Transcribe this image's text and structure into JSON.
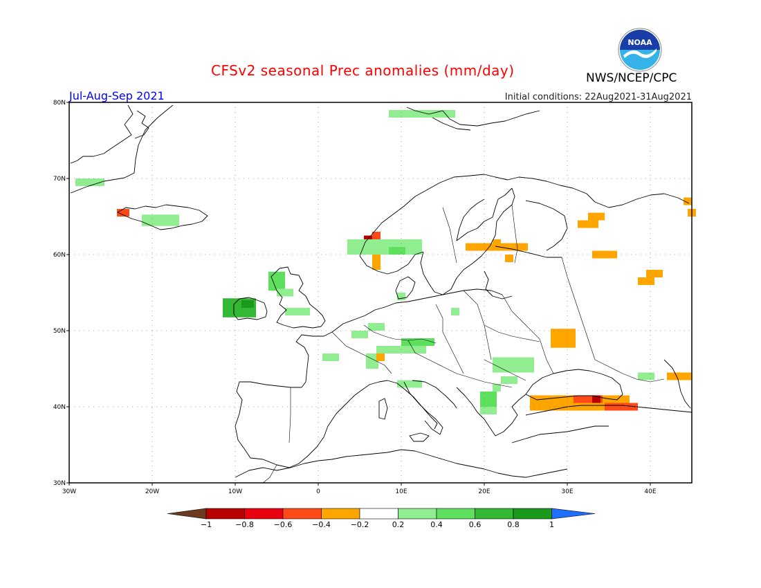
{
  "header": {
    "title": "CFSv2 seasonal Prec anomalies (mm/day)",
    "agency": "NWS/NCEP/CPC",
    "logo_text": "NOAA",
    "period": "Jul-Aug-Sep 2021",
    "initial_conditions": "Initial conditions: 22Aug2021-31Aug2021"
  },
  "axes": {
    "lon_ticks": [
      "30W",
      "20W",
      "10W",
      "0",
      "10E",
      "20E",
      "30E",
      "40E"
    ],
    "lat_ticks": [
      "30N",
      "40N",
      "50N",
      "60N",
      "70N",
      "80N"
    ]
  },
  "colorbar": {
    "tick_labels": [
      "-1",
      "-0.8",
      "-0.6",
      "-0.4",
      "-0.2",
      "0.2",
      "0.4",
      "0.6",
      "0.8",
      "1"
    ],
    "colors": [
      "#6b3a1f",
      "#b80000",
      "#e8000e",
      "#ff4a17",
      "#ffa500",
      "#ffffff",
      "#90ee90",
      "#5ee05e",
      "#32b832",
      "#1a9a1a",
      "#1e6eff"
    ]
  },
  "anomaly_cells": [
    {
      "lon": -27.5,
      "lat": 69.5,
      "w": 3.5,
      "h": 1.0,
      "level": 0.3
    },
    {
      "lon": -19.0,
      "lat": 64.5,
      "w": 4.5,
      "h": 1.5,
      "level": 0.3
    },
    {
      "lon": -23.5,
      "lat": 65.5,
      "w": 1.5,
      "h": 1.0,
      "level": -0.5
    },
    {
      "lon": 12.5,
      "lat": 78.5,
      "w": 8.0,
      "h": 1.0,
      "level": 0.3
    },
    {
      "lon": -9.5,
      "lat": 53.0,
      "w": 4.0,
      "h": 2.5,
      "level": 0.7
    },
    {
      "lon": -8.5,
      "lat": 53.5,
      "w": 1.5,
      "h": 1.0,
      "level": 0.9
    },
    {
      "lon": -5.0,
      "lat": 56.5,
      "w": 2.0,
      "h": 2.5,
      "level": 0.5
    },
    {
      "lon": -4.0,
      "lat": 55.0,
      "w": 2.0,
      "h": 1.0,
      "level": 0.3
    },
    {
      "lon": -2.5,
      "lat": 52.5,
      "w": 3.0,
      "h": 1.0,
      "level": 0.3
    },
    {
      "lon": 6.0,
      "lat": 61.5,
      "w": 1.0,
      "h": 2.0,
      "level": -0.9
    },
    {
      "lon": 7.0,
      "lat": 62.5,
      "w": 1.0,
      "h": 1.0,
      "level": -0.6
    },
    {
      "lon": 7.0,
      "lat": 59.5,
      "w": 1.0,
      "h": 1.5,
      "level": -0.4
    },
    {
      "lon": 8.0,
      "lat": 61.0,
      "w": 9.0,
      "h": 2.0,
      "level": 0.3
    },
    {
      "lon": 9.5,
      "lat": 60.5,
      "w": 2.0,
      "h": 1.0,
      "level": 0.5
    },
    {
      "lon": 10.0,
      "lat": 54.5,
      "w": 1.0,
      "h": 1.0,
      "level": 0.3
    },
    {
      "lon": 16.5,
      "lat": 52.5,
      "w": 1.0,
      "h": 1.0,
      "level": 0.3
    },
    {
      "lon": 7.0,
      "lat": 50.5,
      "w": 2.0,
      "h": 1.0,
      "level": 0.3
    },
    {
      "lon": 5.0,
      "lat": 49.5,
      "w": 2.0,
      "h": 1.0,
      "level": 0.3
    },
    {
      "lon": 1.5,
      "lat": 46.5,
      "w": 2.0,
      "h": 1.0,
      "level": 0.3
    },
    {
      "lon": 6.5,
      "lat": 46.0,
      "w": 1.5,
      "h": 2.0,
      "level": 0.3
    },
    {
      "lon": 7.5,
      "lat": 46.5,
      "w": 1.0,
      "h": 1.0,
      "level": -0.4
    },
    {
      "lon": 10.0,
      "lat": 47.5,
      "w": 6.0,
      "h": 1.0,
      "level": 0.3
    },
    {
      "lon": 12.0,
      "lat": 48.5,
      "w": 4.0,
      "h": 1.0,
      "level": 0.5
    },
    {
      "lon": 11.0,
      "lat": 43.0,
      "w": 3.0,
      "h": 1.0,
      "level": 0.3
    },
    {
      "lon": 23.5,
      "lat": 45.5,
      "w": 5.0,
      "h": 2.0,
      "level": 0.3
    },
    {
      "lon": 23.0,
      "lat": 43.5,
      "w": 2.0,
      "h": 1.0,
      "level": 0.3
    },
    {
      "lon": 21.5,
      "lat": 42.5,
      "w": 1.0,
      "h": 1.0,
      "level": 0.3
    },
    {
      "lon": 20.5,
      "lat": 41.0,
      "w": 2.0,
      "h": 2.0,
      "level": 0.5
    },
    {
      "lon": 20.5,
      "lat": 39.5,
      "w": 2.0,
      "h": 1.0,
      "level": 0.3
    },
    {
      "lon": 7.0,
      "lat": 58.5,
      "w": 1.0,
      "h": 1.0,
      "level": -0.4
    },
    {
      "lon": 21.5,
      "lat": 61.0,
      "w": 7.5,
      "h": 1.0,
      "level": -0.4
    },
    {
      "lon": 21.5,
      "lat": 61.5,
      "w": 1.0,
      "h": 1.0,
      "level": -0.4
    },
    {
      "lon": 23.0,
      "lat": 59.5,
      "w": 1.0,
      "h": 1.0,
      "level": -0.4
    },
    {
      "lon": 32.5,
      "lat": 64.0,
      "w": 2.5,
      "h": 1.0,
      "level": -0.4
    },
    {
      "lon": 33.5,
      "lat": 65.0,
      "w": 2.0,
      "h": 1.0,
      "level": -0.4
    },
    {
      "lon": 34.5,
      "lat": 60.0,
      "w": 3.0,
      "h": 1.0,
      "level": -0.4
    },
    {
      "lon": 44.5,
      "lat": 67.0,
      "w": 1.0,
      "h": 1.0,
      "level": -0.4
    },
    {
      "lon": 45.0,
      "lat": 65.5,
      "w": 1.0,
      "h": 1.0,
      "level": -0.4
    },
    {
      "lon": 39.5,
      "lat": 56.5,
      "w": 2.0,
      "h": 1.0,
      "level": -0.4
    },
    {
      "lon": 40.5,
      "lat": 57.5,
      "w": 2.0,
      "h": 1.0,
      "level": -0.4
    },
    {
      "lon": 29.5,
      "lat": 49.0,
      "w": 3.0,
      "h": 2.5,
      "level": -0.4
    },
    {
      "lon": 43.5,
      "lat": 44.0,
      "w": 3.0,
      "h": 1.0,
      "level": -0.4
    },
    {
      "lon": 39.5,
      "lat": 44.0,
      "w": 2.0,
      "h": 1.0,
      "level": 0.3
    },
    {
      "lon": 31.5,
      "lat": 40.5,
      "w": 12.0,
      "h": 2.0,
      "level": -0.4
    },
    {
      "lon": 32.5,
      "lat": 41.0,
      "w": 3.5,
      "h": 1.0,
      "level": -0.6
    },
    {
      "lon": 33.5,
      "lat": 41.0,
      "w": 1.0,
      "h": 1.0,
      "level": -0.9
    },
    {
      "lon": 36.5,
      "lat": 40.0,
      "w": 4.0,
      "h": 1.0,
      "level": -0.6
    }
  ]
}
